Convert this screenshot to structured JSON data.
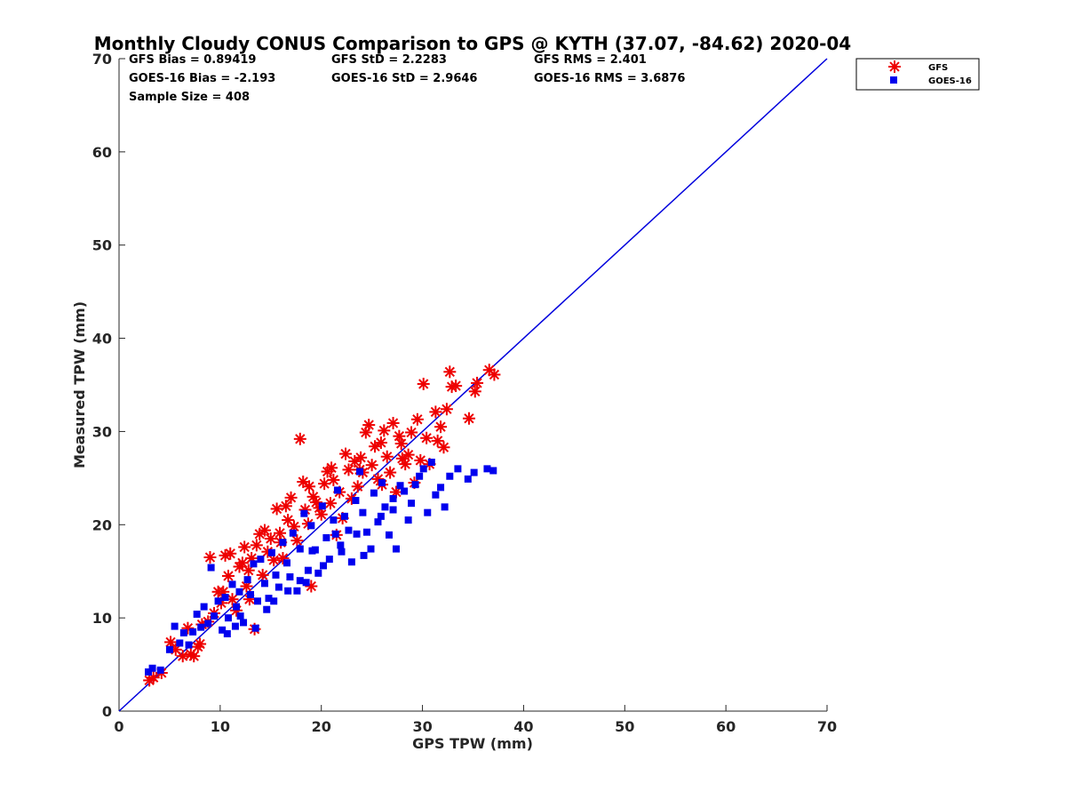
{
  "chart_data": {
    "type": "scatter",
    "title": "Monthly Cloudy CONUS Comparison to GPS @ KYTH (37.07, -84.62) 2020-04",
    "xlabel": "GPS TPW (mm)",
    "ylabel": "Measured TPW (mm)",
    "xlim": [
      0,
      70
    ],
    "ylim": [
      0,
      70
    ],
    "xticks": [
      "0",
      "10",
      "20",
      "30",
      "40",
      "50",
      "60",
      "70"
    ],
    "yticks": [
      "0",
      "10",
      "20",
      "30",
      "40",
      "50",
      "60",
      "70"
    ],
    "grid": false,
    "legend_position": "top-right-outside",
    "stats": {
      "gfs_bias": "GFS Bias = 0.89419",
      "goes_bias": "GOES-16 Bias = -2.193",
      "sample_size": "Sample Size = 408",
      "gfs_std": "GFS StD = 2.2283",
      "goes_std": "GOES-16 StD = 2.9646",
      "gfs_rms": "GFS RMS = 2.401",
      "goes_rms": "GOES-16 RMS = 3.6876"
    },
    "reference_line": {
      "x": [
        0,
        70
      ],
      "y": [
        0,
        70
      ],
      "color": "#0000dd"
    },
    "series": [
      {
        "name": "GFS",
        "marker": "asterisk",
        "color": "#ee0000",
        "points": [
          [
            3.0,
            3.3
          ],
          [
            3.4,
            3.6
          ],
          [
            4.2,
            4.1
          ],
          [
            5.1,
            7.4
          ],
          [
            5.6,
            6.6
          ],
          [
            6.3,
            5.9
          ],
          [
            6.8,
            8.9
          ],
          [
            7.1,
            6.1
          ],
          [
            7.4,
            5.9
          ],
          [
            7.8,
            6.9
          ],
          [
            8.0,
            7.2
          ],
          [
            8.2,
            9.3
          ],
          [
            8.8,
            9.6
          ],
          [
            9.0,
            16.5
          ],
          [
            9.4,
            10.5
          ],
          [
            9.8,
            12.8
          ],
          [
            10.1,
            11.6
          ],
          [
            10.5,
            16.7
          ],
          [
            10.8,
            14.5
          ],
          [
            11.0,
            16.9
          ],
          [
            11.2,
            12.0
          ],
          [
            11.6,
            10.8
          ],
          [
            11.9,
            15.5
          ],
          [
            12.2,
            15.9
          ],
          [
            12.4,
            17.6
          ],
          [
            12.6,
            13.4
          ],
          [
            12.9,
            12.0
          ],
          [
            13.1,
            16.4
          ],
          [
            13.4,
            8.8
          ],
          [
            13.6,
            17.8
          ],
          [
            13.9,
            19.0
          ],
          [
            14.2,
            14.6
          ],
          [
            14.4,
            19.4
          ],
          [
            14.7,
            17.1
          ],
          [
            15.0,
            18.5
          ],
          [
            15.3,
            16.2
          ],
          [
            15.6,
            21.7
          ],
          [
            15.9,
            19.1
          ],
          [
            16.2,
            16.4
          ],
          [
            16.5,
            22.0
          ],
          [
            16.7,
            20.5
          ],
          [
            17.0,
            22.9
          ],
          [
            17.3,
            19.8
          ],
          [
            17.6,
            18.3
          ],
          [
            17.9,
            29.2
          ],
          [
            18.2,
            24.6
          ],
          [
            18.4,
            21.6
          ],
          [
            18.7,
            20.1
          ],
          [
            19.0,
            13.4
          ],
          [
            19.2,
            23.0
          ],
          [
            19.5,
            22.4
          ],
          [
            19.8,
            21.8
          ],
          [
            20.0,
            21.1
          ],
          [
            20.3,
            24.4
          ],
          [
            20.6,
            25.7
          ],
          [
            20.9,
            22.3
          ],
          [
            21.2,
            24.8
          ],
          [
            21.5,
            18.9
          ],
          [
            21.8,
            23.5
          ],
          [
            22.1,
            20.7
          ],
          [
            22.4,
            27.6
          ],
          [
            22.7,
            25.9
          ],
          [
            23.0,
            22.8
          ],
          [
            23.3,
            26.8
          ],
          [
            23.6,
            24.1
          ],
          [
            23.9,
            27.2
          ],
          [
            24.1,
            25.6
          ],
          [
            24.4,
            29.9
          ],
          [
            24.7,
            30.7
          ],
          [
            25.0,
            26.4
          ],
          [
            25.3,
            28.4
          ],
          [
            25.6,
            24.9
          ],
          [
            25.9,
            28.8
          ],
          [
            26.2,
            30.1
          ],
          [
            26.5,
            27.3
          ],
          [
            26.8,
            25.6
          ],
          [
            27.1,
            30.9
          ],
          [
            27.4,
            23.5
          ],
          [
            27.7,
            29.5
          ],
          [
            28.0,
            27.1
          ],
          [
            28.3,
            26.5
          ],
          [
            28.6,
            27.5
          ],
          [
            28.9,
            29.9
          ],
          [
            29.2,
            24.5
          ],
          [
            29.5,
            31.3
          ],
          [
            29.8,
            26.9
          ],
          [
            30.1,
            35.1
          ],
          [
            30.4,
            29.3
          ],
          [
            30.7,
            26.5
          ],
          [
            31.3,
            32.1
          ],
          [
            31.5,
            29.0
          ],
          [
            31.8,
            30.5
          ],
          [
            32.1,
            28.3
          ],
          [
            32.4,
            32.4
          ],
          [
            32.7,
            36.4
          ],
          [
            32.9,
            34.8
          ],
          [
            33.3,
            34.9
          ],
          [
            34.6,
            31.4
          ],
          [
            35.2,
            34.3
          ],
          [
            35.4,
            35.2
          ],
          [
            36.6,
            36.6
          ],
          [
            37.1,
            36.1
          ],
          [
            18.8,
            24.1
          ],
          [
            21.0,
            26.1
          ],
          [
            23.8,
            25.9
          ],
          [
            26.0,
            24.3
          ],
          [
            27.9,
            28.7
          ],
          [
            16.0,
            18.1
          ],
          [
            12.8,
            15.1
          ],
          [
            10.3,
            12.8
          ]
        ]
      },
      {
        "name": "GOES-16",
        "marker": "square",
        "color": "#0000ee",
        "points": [
          [
            2.9,
            4.2
          ],
          [
            3.3,
            4.6
          ],
          [
            4.1,
            4.4
          ],
          [
            5.0,
            6.6
          ],
          [
            5.5,
            9.1
          ],
          [
            6.0,
            7.3
          ],
          [
            6.4,
            8.4
          ],
          [
            6.9,
            7.1
          ],
          [
            7.3,
            8.5
          ],
          [
            7.7,
            10.4
          ],
          [
            8.1,
            9.0
          ],
          [
            8.4,
            11.2
          ],
          [
            8.8,
            9.4
          ],
          [
            9.1,
            15.4
          ],
          [
            9.4,
            10.2
          ],
          [
            9.8,
            11.8
          ],
          [
            10.2,
            8.7
          ],
          [
            10.5,
            12.2
          ],
          [
            10.8,
            10.0
          ],
          [
            11.2,
            13.6
          ],
          [
            11.6,
            11.2
          ],
          [
            11.9,
            12.8
          ],
          [
            12.3,
            9.5
          ],
          [
            12.7,
            14.1
          ],
          [
            13.0,
            12.5
          ],
          [
            13.3,
            15.8
          ],
          [
            13.7,
            11.8
          ],
          [
            14.0,
            16.3
          ],
          [
            14.4,
            13.7
          ],
          [
            14.8,
            12.1
          ],
          [
            15.1,
            17.0
          ],
          [
            15.5,
            14.6
          ],
          [
            15.8,
            13.3
          ],
          [
            16.2,
            18.1
          ],
          [
            16.6,
            15.9
          ],
          [
            16.9,
            14.4
          ],
          [
            17.2,
            19.1
          ],
          [
            17.6,
            12.9
          ],
          [
            17.9,
            17.4
          ],
          [
            18.3,
            21.2
          ],
          [
            18.7,
            15.1
          ],
          [
            19.0,
            19.9
          ],
          [
            19.4,
            17.3
          ],
          [
            19.7,
            14.8
          ],
          [
            20.1,
            22.0
          ],
          [
            20.5,
            18.6
          ],
          [
            20.8,
            16.3
          ],
          [
            21.2,
            20.5
          ],
          [
            21.6,
            23.7
          ],
          [
            21.9,
            17.8
          ],
          [
            22.3,
            20.9
          ],
          [
            22.7,
            19.4
          ],
          [
            23.0,
            16.0
          ],
          [
            23.4,
            22.6
          ],
          [
            23.8,
            25.7
          ],
          [
            24.1,
            21.3
          ],
          [
            24.5,
            19.2
          ],
          [
            24.9,
            17.4
          ],
          [
            25.2,
            23.4
          ],
          [
            25.6,
            20.3
          ],
          [
            26.0,
            24.5
          ],
          [
            26.3,
            21.9
          ],
          [
            26.7,
            18.9
          ],
          [
            27.1,
            22.8
          ],
          [
            27.4,
            17.4
          ],
          [
            27.8,
            24.2
          ],
          [
            28.2,
            23.6
          ],
          [
            28.6,
            20.5
          ],
          [
            28.9,
            22.3
          ],
          [
            29.3,
            24.3
          ],
          [
            29.7,
            25.2
          ],
          [
            30.1,
            26.0
          ],
          [
            30.5,
            21.3
          ],
          [
            30.9,
            26.7
          ],
          [
            31.3,
            23.2
          ],
          [
            31.8,
            24.0
          ],
          [
            32.2,
            21.9
          ],
          [
            32.7,
            25.2
          ],
          [
            33.5,
            26.0
          ],
          [
            34.5,
            24.9
          ],
          [
            35.1,
            25.6
          ],
          [
            36.4,
            26.0
          ],
          [
            37.0,
            25.8
          ],
          [
            13.5,
            8.9
          ],
          [
            12.0,
            10.2
          ],
          [
            15.3,
            11.8
          ],
          [
            17.9,
            14.0
          ],
          [
            20.2,
            15.6
          ],
          [
            22.0,
            17.1
          ],
          [
            24.2,
            16.7
          ],
          [
            10.7,
            8.3
          ],
          [
            14.6,
            10.9
          ],
          [
            19.1,
            17.2
          ],
          [
            21.4,
            19.0
          ],
          [
            16.7,
            12.9
          ],
          [
            11.5,
            9.1
          ],
          [
            18.5,
            13.8
          ],
          [
            25.9,
            20.9
          ],
          [
            23.5,
            19.0
          ],
          [
            27.1,
            21.6
          ]
        ]
      }
    ]
  },
  "legend": [
    {
      "label": "GFS",
      "marker": "asterisk",
      "color": "#ee0000"
    },
    {
      "label": "GOES-16",
      "marker": "square",
      "color": "#0000ee"
    }
  ]
}
